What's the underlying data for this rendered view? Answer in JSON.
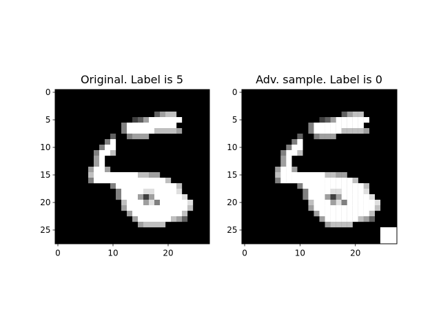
{
  "chart_data": [
    {
      "type": "heatmap",
      "title": "Original. Label is 5",
      "colormap": "gray",
      "value_range": [
        0,
        1
      ],
      "grid": false,
      "xticks": [
        0,
        10,
        20
      ],
      "yticks": [
        0,
        5,
        10,
        15,
        20,
        25
      ],
      "xlim": [
        -0.5,
        27.5
      ],
      "ylim": [
        27.5,
        -0.5
      ],
      "xtick_labels": [
        "0",
        "10",
        "20"
      ],
      "ytick_labels": [
        "0",
        "5",
        "10",
        "15",
        "20",
        "25"
      ],
      "rows": [
        "............................",
        "............................",
        "............................",
        "............................",
        "..................3566......",
        "..............235888888.....",
        "............4888888888......",
        "............48888866665.....",
        "..........3..4555...........",
        ".........48..................",
        "........488.................",
        ".......4886.................",
        ".......58...................",
        ".......58...................",
        "......5885..................",
        "......6888888886655.........",
        "......488888888888886.......",
        "..........4888888888886.....",
        "...........488887788887.....",
        "...........4888525888887....",
        "............6888574888887...",
        "............5888888888886...",
        ".............58888888886....",
        "..............5888888653....",
        "...............56666........",
        "............................",
        "............................",
        "............................"
      ]
    },
    {
      "type": "heatmap",
      "title": "Adv. sample. Label is 0",
      "colormap": "gray",
      "value_range": [
        0,
        1
      ],
      "grid": false,
      "xticks": [
        0,
        10,
        20
      ],
      "yticks": [
        0,
        5,
        10,
        15,
        20,
        25
      ],
      "xlim": [
        -0.5,
        27.5
      ],
      "ylim": [
        27.5,
        -0.5
      ],
      "xtick_labels": [
        "0",
        "10",
        "20"
      ],
      "ytick_labels": [
        "0",
        "5",
        "10",
        "15",
        "20",
        "25"
      ],
      "perturbation": {
        "rows": [
          25,
          27
        ],
        "cols": [
          25,
          27
        ],
        "value": 1
      },
      "rows": [
        "............................",
        "............................",
        "............................",
        "............................",
        "..................3566......",
        "..............235888888.....",
        "............4888888888......",
        "............48888866665.....",
        "..........3..4555...........",
        ".........48..................",
        "........488.................",
        ".......4886.................",
        ".......58...................",
        ".......58...................",
        "......5885..................",
        "......6888888886655.........",
        "......488888888888886.......",
        "..........4888888888886.....",
        "...........488887788887.....",
        "...........4888525888887....",
        "............6888574888887...",
        "............5888888888886...",
        ".............58888888886....",
        "..............5888888653....",
        "...............56666........",
        "............................",
        "............................",
        "............................"
      ]
    }
  ]
}
